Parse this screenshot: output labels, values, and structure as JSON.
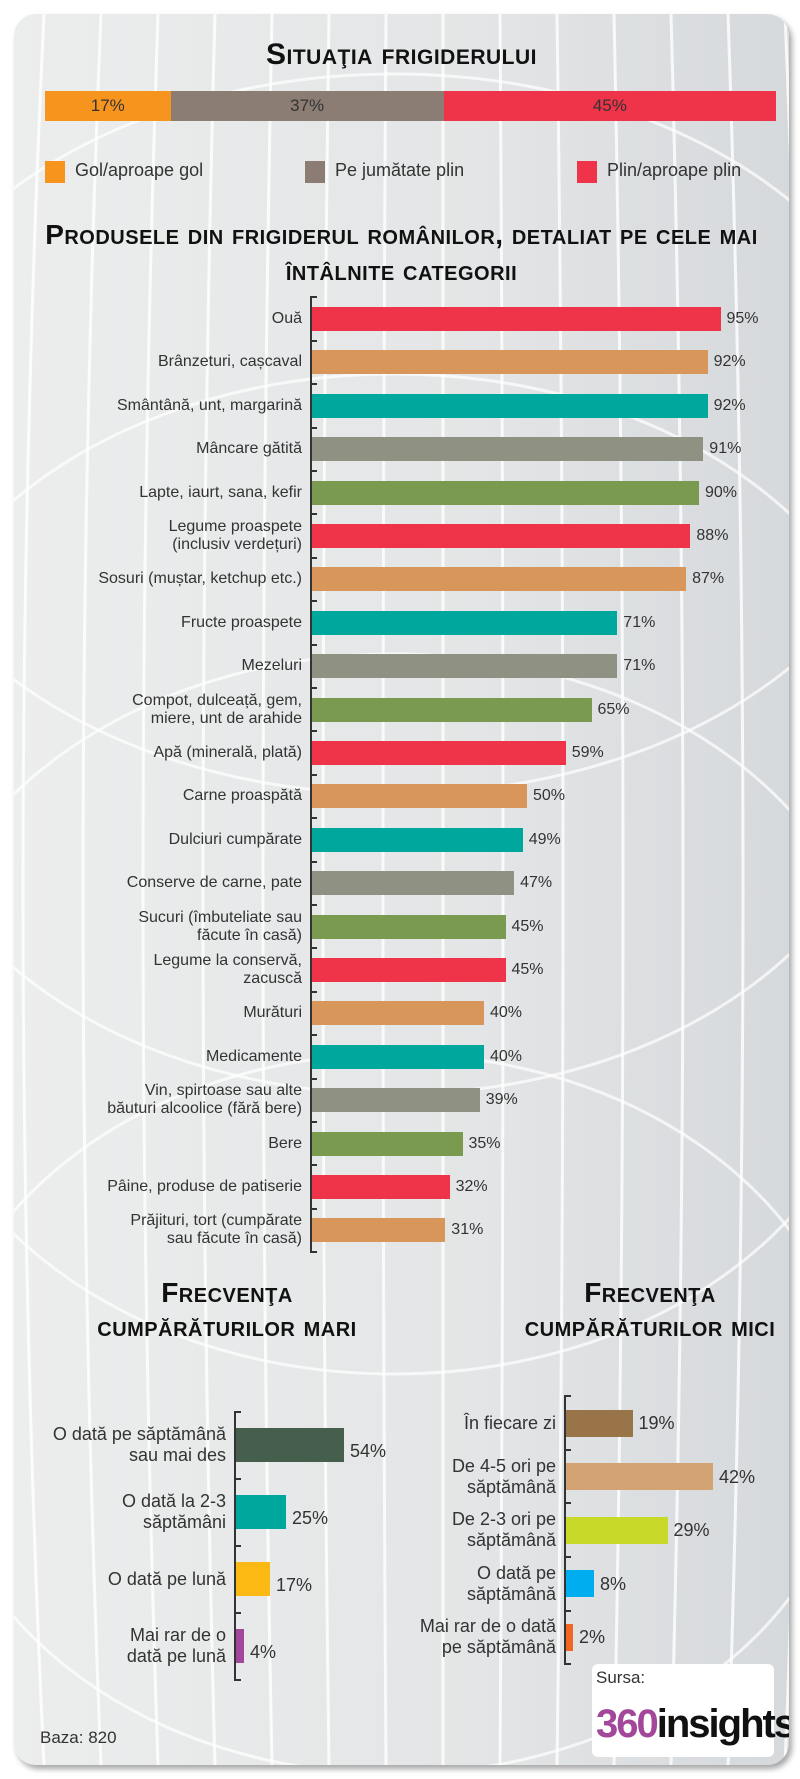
{
  "fridge_status": {
    "title": "Situaţia frigiderului",
    "segments": [
      {
        "label": "Gol/aproape gol",
        "value": 17,
        "text": "17%",
        "color": "#f7941d"
      },
      {
        "label": "Pe jumătate plin",
        "value": 37,
        "text": "37%",
        "color": "#8b7d74"
      },
      {
        "label": "Plin/aproape plin",
        "value": 45,
        "text": "45%",
        "color": "#ef3349"
      }
    ]
  },
  "chart_data": [
    {
      "type": "bar",
      "orientation": "horizontal",
      "title": "Produsele din frigiderul românilor, detaliat pe cele mai întâlnite categorii",
      "categories": [
        "Ouă",
        "Brânzeturi, cașcaval",
        "Smântână, unt, margarină",
        "Mâncare gătită",
        "Lapte, iaurt, sana, kefir",
        "Legume proaspete\n(inclusiv verdețuri)",
        "Sosuri (muștar, ketchup etc.)",
        "Fructe proaspete",
        "Mezeluri",
        "Compot, dulceață, gem,\nmiere, unt de arahide",
        "Apă (minerală, plată)",
        "Carne proaspătă",
        "Dulciuri cumpărate",
        "Conserve de carne, pate",
        "Sucuri (îmbuteliate sau\nfăcute în casă)",
        "Legume la conservă,\nzacuscă",
        "Murături",
        "Medicamente",
        "Vin, spirtoase sau alte\nbăuturi alcoolice (fără bere)",
        "Bere",
        "Pâine, produse de patiserie",
        "Prăjituri, tort (cumpărate\nsau făcute în casă)"
      ],
      "values": [
        95,
        92,
        92,
        91,
        90,
        88,
        87,
        71,
        71,
        65,
        59,
        50,
        49,
        47,
        45,
        45,
        40,
        40,
        39,
        35,
        32,
        31
      ],
      "colors": [
        "#ef3349",
        "#d9965b",
        "#00a79d",
        "#8f9183",
        "#7a9a50"
      ],
      "unit": "%"
    },
    {
      "type": "bar",
      "orientation": "horizontal",
      "title": "Frecvenţa cumpărăturilor mari",
      "categories": [
        "O dată pe săptămână\nsau mai des",
        "O dată la 2-3\nsăptămâni",
        "O dată pe lună",
        "Mai rar de o\ndată pe lună"
      ],
      "values": [
        54,
        25,
        17,
        4
      ],
      "colors": [
        "#455f4c",
        "#00a79d",
        "#fdb913",
        "#a3479a"
      ],
      "unit": "%"
    },
    {
      "type": "bar",
      "orientation": "horizontal",
      "title": "Frecvenţa cumpărăturilor mici",
      "categories": [
        "În fiecare zi",
        "De 4-5 ori pe\nsăptămână",
        "De 2-3 ori pe\nsăptămână",
        "O dată pe\nsăptămână",
        "Mai rar de o dată\npe săptămână"
      ],
      "values": [
        19,
        42,
        29,
        8,
        2
      ],
      "colors": [
        "#9a7449",
        "#d4a373",
        "#c8d92a",
        "#00aeef",
        "#f26522"
      ],
      "unit": "%"
    }
  ],
  "footer": {
    "base": "Baza: 820",
    "source_label": "Sursa:",
    "logo": "360insights"
  }
}
